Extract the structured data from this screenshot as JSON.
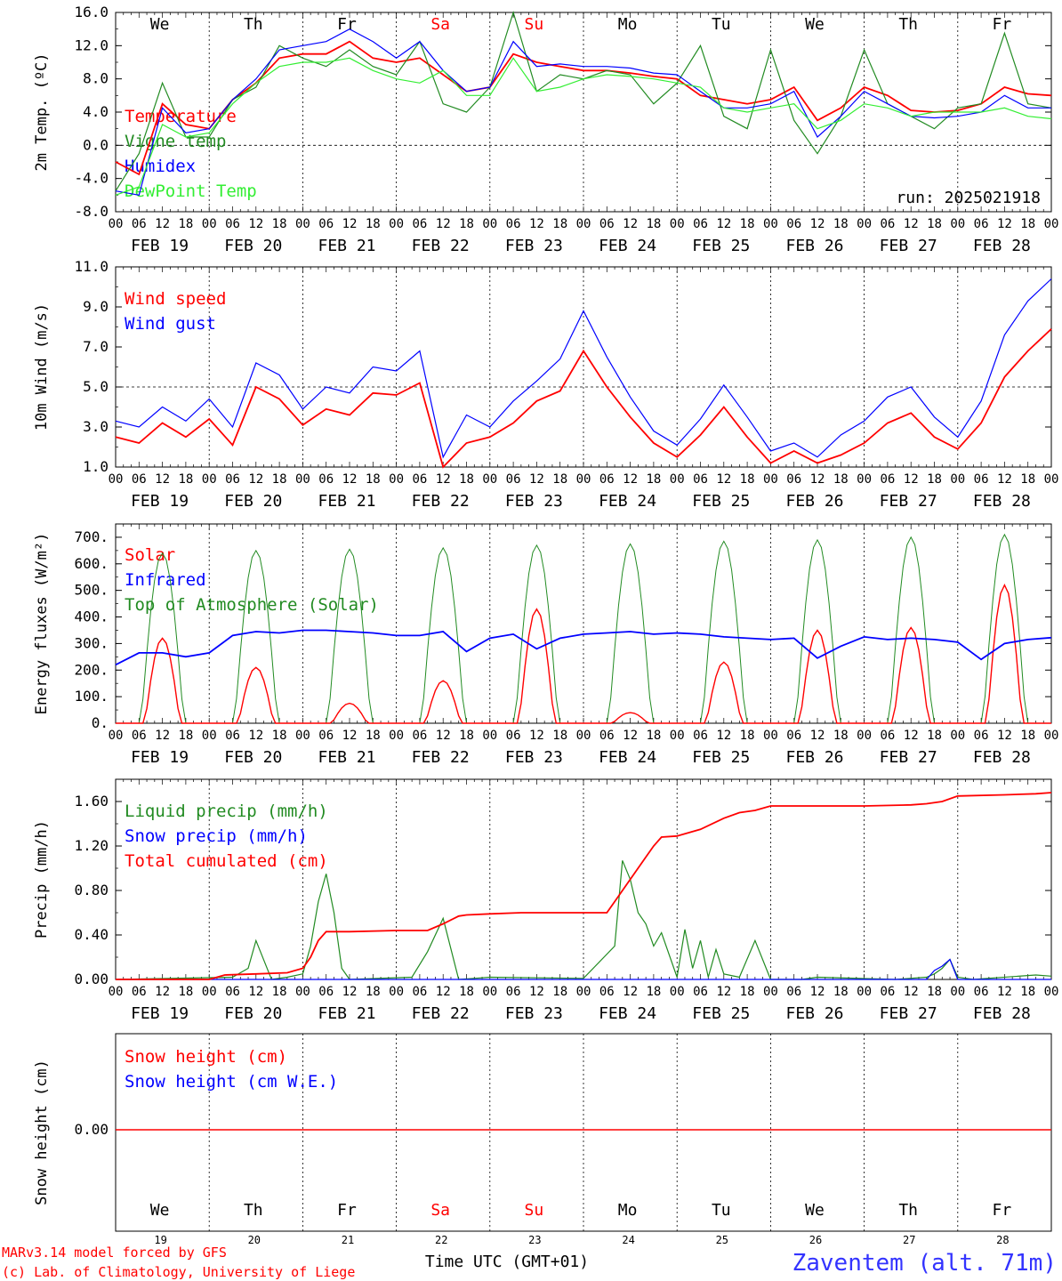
{
  "days": [
    {
      "label": "FEB 19",
      "dow": "We",
      "num": "19",
      "weekend": false
    },
    {
      "label": "FEB 20",
      "dow": "Th",
      "num": "20",
      "weekend": false
    },
    {
      "label": "FEB 21",
      "dow": "Fr",
      "num": "21",
      "weekend": false
    },
    {
      "label": "FEB 22",
      "dow": "Sa",
      "num": "22",
      "weekend": true
    },
    {
      "label": "FEB 23",
      "dow": "Su",
      "num": "23",
      "weekend": true
    },
    {
      "label": "FEB 24",
      "dow": "Mo",
      "num": "24",
      "weekend": false
    },
    {
      "label": "FEB 25",
      "dow": "Tu",
      "num": "25",
      "weekend": false
    },
    {
      "label": "FEB 26",
      "dow": "We",
      "num": "26",
      "weekend": false
    },
    {
      "label": "FEB 27",
      "dow": "Th",
      "num": "27",
      "weekend": false
    },
    {
      "label": "FEB 28",
      "dow": "Fr",
      "num": "28",
      "weekend": false
    }
  ],
  "hour_ticks": [
    "00",
    "06",
    "12",
    "18"
  ],
  "hour_end": "00",
  "colors": {
    "red": "#ff0000",
    "green": "#228B22",
    "blue": "#0000ff",
    "lightgreen": "#33ee33",
    "weekend": "#ff0000"
  },
  "footer": {
    "credit1": "MARv3.14 model forced by GFS",
    "credit2": "(c) Lab. of Climatology, University of Liege",
    "xlabel": "Time UTC (GMT+01)",
    "station": "Zaventem (alt. 71m)"
  },
  "chart_data": [
    {
      "type": "line",
      "ylabel": "2m Temp. (ºC)",
      "ylim": [
        -8,
        16
      ],
      "yticks": [
        "16.0",
        "12.0",
        "8.0",
        "4.0",
        "0.0",
        "-4.0",
        "-8.0"
      ],
      "ref_line": 0,
      "run_label": "run: 2025021918",
      "x_unit": "hours since Feb 19 00 UTC",
      "series": [
        {
          "name": "Temperature",
          "color": "red",
          "x": [
            0,
            6,
            12,
            18,
            24,
            30,
            36,
            42,
            48,
            54,
            60,
            66,
            72,
            78,
            84,
            90,
            96,
            102,
            108,
            114,
            120,
            126,
            132,
            138,
            144,
            150,
            156,
            162,
            168,
            174,
            180,
            186,
            192,
            198,
            204,
            210,
            216,
            222,
            228,
            234,
            240
          ],
          "values": [
            -2,
            -3.5,
            5,
            2.5,
            2,
            5.5,
            7.5,
            10.5,
            11,
            11,
            12.5,
            10.5,
            10,
            10.5,
            8.5,
            6.5,
            7,
            11,
            10,
            9.5,
            9,
            9,
            8.7,
            8.3,
            8,
            6,
            5.5,
            5,
            5.5,
            7,
            3,
            4.5,
            7,
            6,
            4.2,
            4,
            4.2,
            5,
            7,
            6.2,
            6
          ]
        },
        {
          "name": "Vigne temp",
          "color": "green",
          "x": [
            0,
            6,
            12,
            18,
            24,
            30,
            36,
            42,
            48,
            54,
            60,
            66,
            72,
            78,
            84,
            90,
            96,
            102,
            108,
            114,
            120,
            126,
            132,
            138,
            144,
            150,
            156,
            162,
            168,
            174,
            180,
            186,
            192,
            198,
            204,
            210,
            216,
            222,
            228,
            234,
            240
          ],
          "values": [
            -5.5,
            -1,
            7.5,
            1,
            1,
            5.5,
            7,
            12,
            10.5,
            9.5,
            11.5,
            9.5,
            8.5,
            12.5,
            5,
            4,
            7,
            16,
            6.5,
            8.5,
            8,
            9,
            8.5,
            5,
            7.5,
            12,
            3.5,
            2,
            11.5,
            3,
            -1,
            3.5,
            11.5,
            5,
            3.5,
            2,
            4.5,
            5,
            13.5,
            5,
            4.5
          ]
        },
        {
          "name": "Humidex",
          "color": "blue",
          "x": [
            0,
            6,
            12,
            18,
            24,
            30,
            36,
            42,
            48,
            54,
            60,
            66,
            72,
            78,
            84,
            90,
            96,
            102,
            108,
            114,
            120,
            126,
            132,
            138,
            144,
            150,
            156,
            162,
            168,
            174,
            180,
            186,
            192,
            198,
            204,
            210,
            216,
            222,
            228,
            234,
            240
          ],
          "values": [
            -5.5,
            -6,
            4.5,
            1.5,
            2,
            5.5,
            8,
            11.5,
            12,
            12.5,
            14,
            12.5,
            10.5,
            12.5,
            9,
            6.5,
            7,
            12.5,
            9.5,
            9.8,
            9.5,
            9.5,
            9.3,
            8.7,
            8.5,
            6.5,
            4.5,
            4.5,
            5,
            6.5,
            1,
            3.5,
            6.5,
            5,
            3.5,
            3.3,
            3.5,
            4,
            6,
            4.5,
            4.5
          ]
        },
        {
          "name": "DewPoint Temp",
          "color": "lightgreen",
          "x": [
            0,
            6,
            12,
            18,
            24,
            30,
            36,
            42,
            48,
            54,
            60,
            66,
            72,
            78,
            84,
            90,
            96,
            102,
            108,
            114,
            120,
            126,
            132,
            138,
            144,
            150,
            156,
            162,
            168,
            174,
            180,
            186,
            192,
            198,
            204,
            210,
            216,
            222,
            228,
            234,
            240
          ],
          "values": [
            -6,
            -5,
            2.5,
            1,
            1.5,
            5,
            7.5,
            9.5,
            10,
            10,
            10.5,
            9,
            8,
            7.5,
            9,
            6,
            6,
            10.5,
            6.5,
            7,
            8,
            8.5,
            8.3,
            8,
            7.5,
            7,
            4.5,
            4,
            4.5,
            5,
            2,
            3,
            5,
            4.5,
            3.5,
            4,
            4,
            4,
            4.5,
            3.5,
            3.2
          ]
        }
      ]
    },
    {
      "type": "line",
      "ylabel": "10m Wind (m/s)",
      "ylim": [
        1,
        11
      ],
      "yticks": [
        "11.0",
        "9.0",
        "7.0",
        "5.0",
        "3.0",
        "1.0"
      ],
      "ref_line": 5,
      "series": [
        {
          "name": "Wind speed",
          "color": "red",
          "x": [
            0,
            6,
            12,
            18,
            24,
            30,
            36,
            42,
            48,
            54,
            60,
            66,
            72,
            78,
            84,
            90,
            96,
            102,
            108,
            114,
            120,
            126,
            132,
            138,
            144,
            150,
            156,
            162,
            168,
            174,
            180,
            186,
            192,
            198,
            204,
            210,
            216,
            222,
            228,
            234,
            240
          ],
          "values": [
            2.5,
            2.2,
            3.2,
            2.5,
            3.4,
            2.1,
            5,
            4.4,
            3.1,
            3.9,
            3.6,
            4.7,
            4.6,
            5.2,
            1,
            2.2,
            2.5,
            3.2,
            4.3,
            4.8,
            6.8,
            5,
            3.5,
            2.2,
            1.5,
            2.6,
            4,
            2.5,
            1.2,
            1.8,
            1.2,
            1.6,
            2.2,
            3.2,
            3.7,
            2.5,
            1.9,
            3.2,
            5.5,
            6.8,
            7.9
          ]
        },
        {
          "name": "Wind gust",
          "color": "blue",
          "x": [
            0,
            6,
            12,
            18,
            24,
            30,
            36,
            42,
            48,
            54,
            60,
            66,
            72,
            78,
            84,
            90,
            96,
            102,
            108,
            114,
            120,
            126,
            132,
            138,
            144,
            150,
            156,
            162,
            168,
            174,
            180,
            186,
            192,
            198,
            204,
            210,
            216,
            222,
            228,
            234,
            240
          ],
          "values": [
            3.3,
            3,
            4,
            3.3,
            4.4,
            3,
            6.2,
            5.6,
            3.9,
            5,
            4.7,
            6,
            5.8,
            6.8,
            1.5,
            3.6,
            3,
            4.3,
            5.3,
            6.4,
            8.8,
            6.5,
            4.5,
            2.8,
            2.1,
            3.4,
            5.1,
            3.5,
            1.8,
            2.2,
            1.5,
            2.6,
            3.3,
            4.5,
            5,
            3.5,
            2.5,
            4.3,
            7.6,
            9.3,
            10.4
          ]
        }
      ]
    },
    {
      "type": "line",
      "ylabel": "Energy fluxes (W/m²)",
      "ylim": [
        0,
        750
      ],
      "yticks": [
        "700.",
        "600.",
        "500.",
        "400.",
        "300.",
        "200.",
        "100.",
        "0."
      ],
      "series": [
        {
          "name": "Solar",
          "color": "red",
          "peaks": [
            320,
            210,
            75,
            160,
            430,
            40,
            230,
            350,
            360,
            520
          ]
        },
        {
          "name": "Infrared",
          "color": "blue",
          "x": [
            0,
            6,
            12,
            18,
            24,
            30,
            36,
            42,
            48,
            54,
            60,
            66,
            72,
            78,
            84,
            90,
            96,
            102,
            108,
            114,
            120,
            126,
            132,
            138,
            144,
            150,
            156,
            162,
            168,
            174,
            180,
            186,
            192,
            198,
            204,
            210,
            216,
            222,
            228,
            234,
            240
          ],
          "values": [
            220,
            265,
            265,
            250,
            265,
            330,
            345,
            340,
            350,
            350,
            345,
            340,
            330,
            330,
            345,
            270,
            320,
            335,
            280,
            320,
            335,
            340,
            345,
            335,
            340,
            335,
            325,
            320,
            315,
            320,
            245,
            290,
            325,
            315,
            320,
            315,
            305,
            240,
            300,
            315,
            322
          ]
        },
        {
          "name": "Top of Atmosphere (Solar)",
          "color": "green",
          "peaks": [
            640,
            650,
            655,
            660,
            670,
            675,
            685,
            690,
            700,
            710
          ]
        }
      ]
    },
    {
      "type": "line",
      "ylabel": "Precip (mm/h)",
      "ylim": [
        0,
        1.8
      ],
      "yticks": [
        "1.60",
        "1.20",
        "0.80",
        "0.40",
        "0.00"
      ],
      "series": [
        {
          "name": "Liquid precip (mm/h)",
          "color": "green",
          "x": [
            0,
            30,
            34,
            36,
            40,
            44,
            48,
            50,
            52,
            54,
            56,
            58,
            60,
            76,
            80,
            84,
            88,
            92,
            96,
            120,
            128,
            130,
            132,
            134,
            136,
            138,
            140,
            144,
            146,
            148,
            150,
            152,
            154,
            156,
            160,
            164,
            168,
            176,
            180,
            200,
            208,
            210,
            212,
            214,
            216,
            220,
            236,
            240
          ],
          "values": [
            0,
            0.02,
            0.1,
            0.35,
            0,
            0.02,
            0.05,
            0.3,
            0.7,
            0.95,
            0.6,
            0.1,
            0,
            0.02,
            0.25,
            0.55,
            0,
            0.01,
            0.02,
            0.01,
            0.3,
            1.07,
            0.9,
            0.6,
            0.5,
            0.3,
            0.42,
            0.02,
            0.45,
            0.1,
            0.35,
            0.02,
            0.27,
            0.05,
            0.02,
            0.35,
            0,
            0,
            0.02,
            0,
            0.02,
            0.05,
            0.1,
            0.18,
            0.02,
            0,
            0.04,
            0.03
          ]
        },
        {
          "name": "Snow precip (mm/h)",
          "color": "blue",
          "x": [
            0,
            208,
            210,
            212,
            214,
            216,
            240
          ],
          "values": [
            0,
            0,
            0.08,
            0.12,
            0.18,
            0,
            0
          ]
        }
      ]
    },
    {
      "type": "line",
      "ylabel": "Snow height (cm)",
      "yticks": [
        "0.00"
      ],
      "series": [
        {
          "name": "Snow height (cm)",
          "color": "red",
          "values": [
            0,
            0
          ]
        },
        {
          "name": "Snow height (cm W.E.)",
          "color": "blue",
          "values": [
            0,
            0
          ]
        }
      ]
    }
  ],
  "cumulated": {
    "name": "Total cumulated (cm)",
    "color": "red",
    "x": [
      0,
      24,
      28,
      36,
      44,
      48,
      50,
      52,
      54,
      58,
      60,
      72,
      80,
      84,
      88,
      90,
      96,
      104,
      108,
      114,
      120,
      126,
      128,
      132,
      136,
      138,
      140,
      144,
      150,
      156,
      160,
      164,
      168,
      180,
      192,
      204,
      208,
      212,
      216,
      228,
      236,
      240
    ],
    "values": [
      0,
      0,
      0.04,
      0.05,
      0.06,
      0.1,
      0.2,
      0.35,
      0.43,
      0.43,
      0.43,
      0.44,
      0.44,
      0.5,
      0.57,
      0.58,
      0.59,
      0.6,
      0.6,
      0.6,
      0.6,
      0.6,
      0.7,
      0.9,
      1.1,
      1.2,
      1.28,
      1.29,
      1.35,
      1.45,
      1.5,
      1.52,
      1.56,
      1.56,
      1.56,
      1.57,
      1.58,
      1.6,
      1.65,
      1.66,
      1.67,
      1.68
    ]
  }
}
